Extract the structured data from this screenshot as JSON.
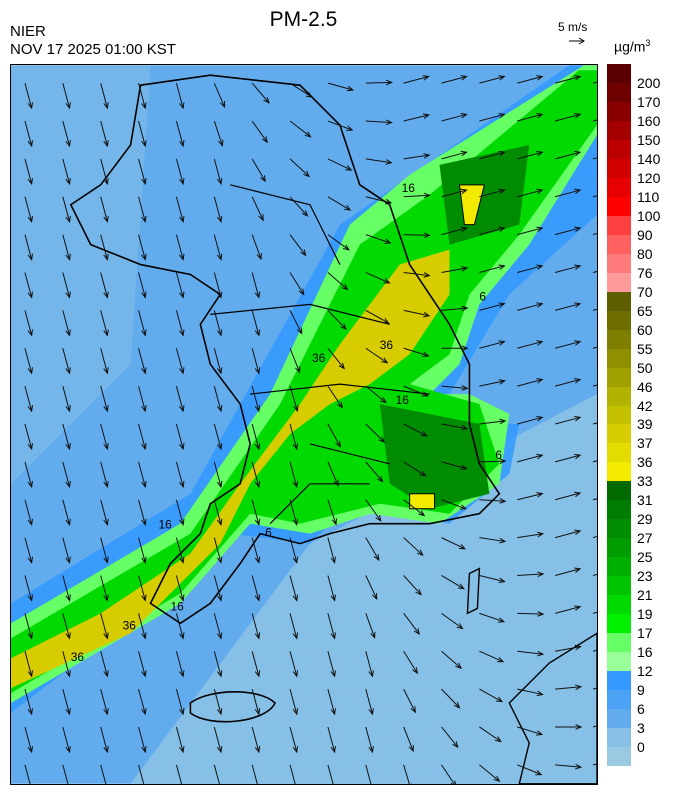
{
  "header": {
    "agency": "NIER",
    "datetime": "NOV 17 2025 01:00 KST",
    "title": "PM-2.5",
    "wind_reference": "5 m/s",
    "unit": "µg/m",
    "unit_exponent": "3"
  },
  "legend": {
    "labels": [
      "200",
      "170",
      "160",
      "150",
      "140",
      "120",
      "110",
      "100",
      "90",
      "80",
      "76",
      "70",
      "65",
      "60",
      "55",
      "50",
      "46",
      "42",
      "39",
      "37",
      "36",
      "33",
      "31",
      "29",
      "27",
      "25",
      "23",
      "21",
      "19",
      "17",
      "16",
      "12",
      "9",
      "6",
      "3",
      "0"
    ],
    "colors": [
      "#5a0000",
      "#6e0000",
      "#880000",
      "#a40000",
      "#bc0000",
      "#d00000",
      "#e60000",
      "#ff0000",
      "#ff4040",
      "#ff6060",
      "#ff7a7a",
      "#ff9a9a",
      "#5e5e00",
      "#6e6e00",
      "#7e7e00",
      "#8f8f00",
      "#a0a000",
      "#b2b200",
      "#c4c000",
      "#d6cc00",
      "#e2dc00",
      "#f2ea00",
      "#006a00",
      "#007c00",
      "#008c00",
      "#009c00",
      "#00b000",
      "#00c400",
      "#00da00",
      "#00f000",
      "#66ff66",
      "#99ff99",
      "#3399ff",
      "#4ca2f4",
      "#62acee",
      "#86c0e6",
      "#9acae2"
    ]
  },
  "map": {
    "contour_labels": [
      "16",
      "36",
      "36",
      "36",
      "16",
      "16",
      "6",
      "6",
      "6",
      "36",
      "16"
    ],
    "colors": {
      "sea_low": "#86c0e6",
      "background": "#62acee",
      "blue_high": "#3399ff",
      "green_light": "#66ff66",
      "green": "#00da00",
      "green_dark": "#008c00",
      "yellow": "#d6cc00",
      "coast": "#000000",
      "boundary": "#bbbbbb"
    }
  }
}
